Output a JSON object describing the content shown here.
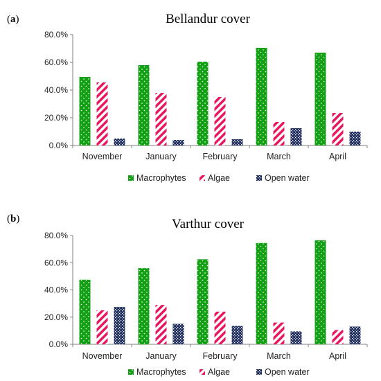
{
  "colors": {
    "macrophytes": "#14a014",
    "algae": "#e8175d",
    "open_water": "#1b2a5e",
    "axis": "#7f7f7f"
  },
  "chart_data": [
    {
      "panel": "(a)",
      "type": "bar",
      "title": "Bellandur cover",
      "categories": [
        "November",
        "January",
        "February",
        "March",
        "April"
      ],
      "series": [
        {
          "name": "Macrophytes",
          "values": [
            49.5,
            58.0,
            60.5,
            70.5,
            67.0
          ]
        },
        {
          "name": "Algae",
          "values": [
            45.5,
            38.0,
            35.0,
            17.0,
            23.5
          ]
        },
        {
          "name": "Open water",
          "values": [
            5.0,
            4.0,
            4.5,
            12.5,
            10.0
          ]
        }
      ],
      "ylim": [
        0,
        80
      ],
      "yticks": [
        "0.0%",
        "20.0%",
        "40.0%",
        "60.0%",
        "80.0%"
      ],
      "legend_position": "bottom",
      "grid": false
    },
    {
      "panel": "(b)",
      "type": "bar",
      "title": "Varthur cover",
      "categories": [
        "November",
        "January",
        "February",
        "March",
        "April"
      ],
      "series": [
        {
          "name": "Macrophytes",
          "values": [
            47.5,
            56.0,
            62.5,
            74.5,
            76.5
          ]
        },
        {
          "name": "Algae",
          "values": [
            25.0,
            29.0,
            24.0,
            16.0,
            10.5
          ]
        },
        {
          "name": "Open water",
          "values": [
            27.5,
            15.0,
            13.5,
            9.5,
            13.0
          ]
        }
      ],
      "ylim": [
        0,
        80
      ],
      "yticks": [
        "0.0%",
        "20.0%",
        "40.0%",
        "60.0%",
        "80.0%"
      ],
      "legend_position": "bottom",
      "grid": false
    }
  ]
}
